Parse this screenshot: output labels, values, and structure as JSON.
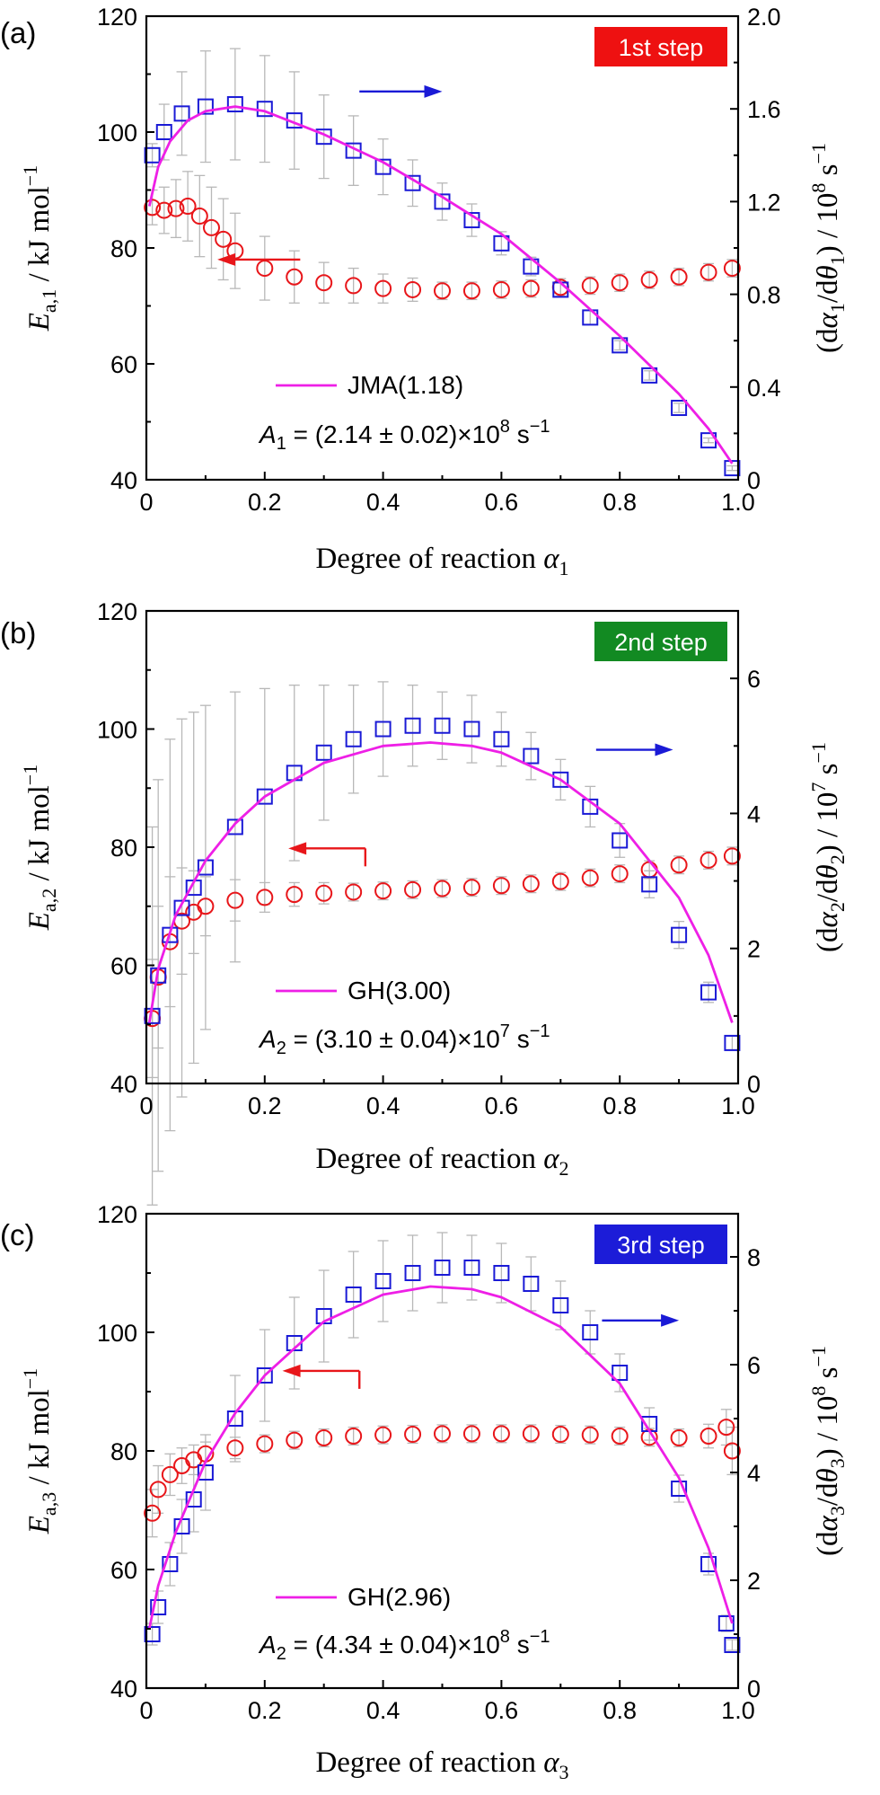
{
  "figure": {
    "colors": {
      "ea_marker": "#e8161a",
      "rate_marker": "#1a1ad6",
      "model_line": "#ee1fe6",
      "error_bar": "#b8b8b8",
      "axis": "#000000"
    }
  },
  "chart_data": [
    {
      "type": "scatter",
      "panel_label": "(a)",
      "badge": {
        "text": "1st step",
        "color": "#ee1111"
      },
      "xlabel": {
        "text": "Degree of reaction ",
        "sym": "α",
        "sub": "1"
      },
      "ylabel_left": {
        "sym": "E",
        "sub": "a,1",
        "rest": " / kJ mol",
        "sup": "−1"
      },
      "ylabel_right": {
        "pre": "(d",
        "sym1": "α",
        "sub1": "1",
        "mid": "/d",
        "sym2": "θ",
        "sub2": "1",
        "post": ") / 10",
        "pow": "8",
        "unit": " s",
        "unitsup": "−1"
      },
      "xlim": [
        0,
        1.0
      ],
      "ylim_left": [
        40,
        120
      ],
      "ylim_right": [
        0,
        2.0
      ],
      "xticks": [
        0,
        0.2,
        0.4,
        0.6,
        0.8,
        1.0
      ],
      "xtick_labels": [
        "0",
        "0.2",
        "0.4",
        "0.6",
        "0.8",
        "1.0"
      ],
      "yticks_left": [
        40,
        60,
        80,
        100,
        120
      ],
      "yticks_left_labels": [
        "40",
        "60",
        "80",
        "100",
        "120"
      ],
      "yticks_right": [
        0,
        0.4,
        0.8,
        1.2,
        1.6,
        2.0
      ],
      "yticks_right_labels": [
        "0",
        "0.4",
        "0.8",
        "1.2",
        "1.6",
        "2.0"
      ],
      "legend": {
        "label": "JMA(1.18)"
      },
      "annotation": {
        "sym": "A",
        "sub": "1",
        "text": " = (2.14 ± 0.02)×10",
        "pow": "8",
        "unit": " s",
        "unitsup": "−1"
      },
      "arrows": [
        {
          "dir": "left",
          "x0": 0.26,
          "x1": 0.12,
          "y": 78,
          "axis": "left"
        },
        {
          "dir": "right",
          "x0": 0.36,
          "x1": 0.5,
          "y": 107,
          "axis": "left"
        }
      ],
      "series": [
        {
          "axis": "left",
          "marker": "circle",
          "x": [
            0.01,
            0.03,
            0.05,
            0.07,
            0.09,
            0.11,
            0.13,
            0.15,
            0.2,
            0.25,
            0.3,
            0.35,
            0.4,
            0.45,
            0.5,
            0.55,
            0.6,
            0.65,
            0.7,
            0.75,
            0.8,
            0.85,
            0.9,
            0.95,
            0.99
          ],
          "y": [
            87,
            86.5,
            86.8,
            87.2,
            85.5,
            83.5,
            81.5,
            79.5,
            76.5,
            75,
            74,
            73.5,
            73,
            72.8,
            72.6,
            72.6,
            72.8,
            73,
            73.2,
            73.5,
            74,
            74.5,
            75,
            75.8,
            76.5
          ],
          "err": [
            3,
            4,
            5,
            6,
            7,
            7,
            7,
            6.5,
            5.5,
            4.5,
            3.5,
            3,
            2.5,
            2,
            1.5,
            1.5,
            1.5,
            1.5,
            1.5,
            1.5,
            1.5,
            1.5,
            1.5,
            1.5,
            1.5
          ]
        },
        {
          "axis": "right",
          "marker": "square",
          "x": [
            0.01,
            0.03,
            0.06,
            0.1,
            0.15,
            0.2,
            0.25,
            0.3,
            0.35,
            0.4,
            0.45,
            0.5,
            0.55,
            0.6,
            0.65,
            0.7,
            0.75,
            0.8,
            0.85,
            0.9,
            0.95,
            0.99
          ],
          "y": [
            1.4,
            1.5,
            1.58,
            1.61,
            1.62,
            1.6,
            1.55,
            1.48,
            1.42,
            1.35,
            1.28,
            1.2,
            1.12,
            1.02,
            0.92,
            0.82,
            0.7,
            0.58,
            0.45,
            0.31,
            0.17,
            0.05
          ],
          "err": [
            0.05,
            0.12,
            0.18,
            0.24,
            0.24,
            0.23,
            0.21,
            0.18,
            0.15,
            0.12,
            0.1,
            0.08,
            0.07,
            0.05,
            0.04,
            0.03,
            0.03,
            0.02,
            0.02,
            0.02,
            0.01,
            0.01
          ]
        }
      ],
      "model": {
        "axis": "right",
        "x": [
          0.005,
          0.02,
          0.04,
          0.07,
          0.1,
          0.15,
          0.2,
          0.3,
          0.4,
          0.5,
          0.6,
          0.7,
          0.8,
          0.9,
          0.95,
          0.99
        ],
        "y": [
          1.18,
          1.35,
          1.46,
          1.55,
          1.59,
          1.61,
          1.59,
          1.49,
          1.37,
          1.22,
          1.06,
          0.85,
          0.62,
          0.37,
          0.22,
          0.07
        ]
      }
    },
    {
      "type": "scatter",
      "panel_label": "(b)",
      "badge": {
        "text": "2nd step",
        "color": "#128a22"
      },
      "xlabel": {
        "text": "Degree of reaction ",
        "sym": "α",
        "sub": "2"
      },
      "ylabel_left": {
        "sym": "E",
        "sub": "a,2",
        "rest": " / kJ mol",
        "sup": "−1"
      },
      "ylabel_right": {
        "pre": "(d",
        "sym1": "α",
        "sub1": "2",
        "mid": "/d",
        "sym2": "θ",
        "sub2": "2",
        "post": ") / 10",
        "pow": "7",
        "unit": " s",
        "unitsup": "−1"
      },
      "xlim": [
        0,
        1.0
      ],
      "ylim_left": [
        40,
        120
      ],
      "ylim_right": [
        0,
        7
      ],
      "xticks": [
        0,
        0.2,
        0.4,
        0.6,
        0.8,
        1.0
      ],
      "xtick_labels": [
        "0",
        "0.2",
        "0.4",
        "0.6",
        "0.8",
        "1.0"
      ],
      "yticks_left": [
        40,
        60,
        80,
        100,
        120
      ],
      "yticks_left_labels": [
        "40",
        "60",
        "80",
        "100",
        "120"
      ],
      "yticks_right": [
        0,
        2,
        4,
        6
      ],
      "yticks_right_labels": [
        "0",
        "2",
        "4",
        "6"
      ],
      "legend": {
        "label": "GH(3.00)"
      },
      "annotation": {
        "sym": "A",
        "sub": "2",
        "text": " = (3.10 ± 0.04)×10",
        "pow": "7",
        "unit": " s",
        "unitsup": "−1"
      },
      "arrows": [
        {
          "dir": "left",
          "x0": 0.37,
          "x1": 0.24,
          "y": 79.8,
          "axis": "left",
          "bend": true
        },
        {
          "dir": "right",
          "x0": 0.76,
          "x1": 0.89,
          "y": 96.5,
          "axis": "left"
        }
      ],
      "series": [
        {
          "axis": "left",
          "marker": "circle",
          "x": [
            0.01,
            0.02,
            0.04,
            0.06,
            0.08,
            0.1,
            0.15,
            0.2,
            0.25,
            0.3,
            0.35,
            0.4,
            0.45,
            0.5,
            0.55,
            0.6,
            0.65,
            0.7,
            0.75,
            0.8,
            0.85,
            0.9,
            0.95,
            0.99
          ],
          "y": [
            51,
            58,
            64,
            67.5,
            69,
            70,
            71,
            71.5,
            72,
            72.2,
            72.4,
            72.6,
            72.8,
            73,
            73.2,
            73.5,
            73.8,
            74.2,
            74.8,
            75.5,
            76.2,
            77,
            77.8,
            78.5
          ],
          "err": [
            10,
            12,
            11,
            9,
            7,
            5,
            3.5,
            2.5,
            2,
            1.8,
            1.5,
            1.5,
            1.5,
            1.5,
            1.5,
            1.5,
            1.5,
            1.5,
            1.5,
            1.5,
            1.5,
            1.5,
            1.5,
            1.5
          ]
        },
        {
          "axis": "right",
          "marker": "square",
          "x": [
            0.01,
            0.02,
            0.04,
            0.06,
            0.08,
            0.1,
            0.15,
            0.2,
            0.25,
            0.3,
            0.35,
            0.4,
            0.45,
            0.5,
            0.55,
            0.6,
            0.65,
            0.7,
            0.75,
            0.8,
            0.85,
            0.9,
            0.95,
            0.99
          ],
          "y": [
            1.0,
            1.6,
            2.2,
            2.6,
            2.9,
            3.2,
            3.8,
            4.25,
            4.6,
            4.9,
            5.1,
            5.25,
            5.3,
            5.3,
            5.25,
            5.1,
            4.85,
            4.5,
            4.1,
            3.6,
            2.95,
            2.2,
            1.35,
            0.6
          ],
          "err": [
            2.8,
            2.9,
            2.9,
            2.8,
            2.6,
            2.4,
            2.0,
            1.6,
            1.3,
            1.0,
            0.8,
            0.7,
            0.6,
            0.5,
            0.5,
            0.4,
            0.35,
            0.3,
            0.3,
            0.25,
            0.2,
            0.2,
            0.15,
            0.1
          ]
        }
      ],
      "model": {
        "axis": "right",
        "x": [
          0.005,
          0.02,
          0.05,
          0.1,
          0.15,
          0.2,
          0.3,
          0.4,
          0.48,
          0.55,
          0.6,
          0.7,
          0.8,
          0.9,
          0.95,
          0.99
        ],
        "y": [
          0.9,
          1.7,
          2.5,
          3.3,
          3.85,
          4.25,
          4.75,
          5.0,
          5.05,
          5.0,
          4.9,
          4.5,
          3.85,
          2.75,
          1.9,
          0.9
        ]
      }
    },
    {
      "type": "scatter",
      "panel_label": "(c)",
      "badge": {
        "text": "3rd step",
        "color": "#1c1cd8"
      },
      "xlabel": {
        "text": "Degree of reaction ",
        "sym": "α",
        "sub": "3"
      },
      "ylabel_left": {
        "sym": "E",
        "sub": "a,3",
        "rest": " / kJ mol",
        "sup": "−1"
      },
      "ylabel_right": {
        "pre": "(d",
        "sym1": "α",
        "sub1": "3",
        "mid": "/d",
        "sym2": "θ",
        "sub2": "3",
        "post": ") / 10",
        "pow": "8",
        "unit": " s",
        "unitsup": "−1"
      },
      "xlim": [
        0,
        1.0
      ],
      "ylim_left": [
        40,
        120
      ],
      "ylim_right": [
        0,
        8.8
      ],
      "xticks": [
        0,
        0.2,
        0.4,
        0.6,
        0.8,
        1.0
      ],
      "xtick_labels": [
        "0",
        "0.2",
        "0.4",
        "0.6",
        "0.8",
        "1.0"
      ],
      "yticks_left": [
        40,
        60,
        80,
        100,
        120
      ],
      "yticks_left_labels": [
        "40",
        "60",
        "80",
        "100",
        "120"
      ],
      "yticks_right": [
        0,
        2,
        4,
        6,
        8
      ],
      "yticks_right_labels": [
        "0",
        "2",
        "4",
        "6",
        "8"
      ],
      "legend": {
        "label": "GH(2.96)"
      },
      "annotation": {
        "sym": "A",
        "sub": "2",
        "text": " = (4.34 ± 0.04)×10",
        "pow": "8",
        "unit": " s",
        "unitsup": "−1"
      },
      "arrows": [
        {
          "dir": "left",
          "x0": 0.36,
          "x1": 0.23,
          "y": 93.5,
          "axis": "left",
          "bend": true
        },
        {
          "dir": "right",
          "x0": 0.77,
          "x1": 0.9,
          "y": 102,
          "axis": "left"
        }
      ],
      "series": [
        {
          "axis": "left",
          "marker": "circle",
          "x": [
            0.01,
            0.02,
            0.04,
            0.06,
            0.08,
            0.1,
            0.15,
            0.2,
            0.25,
            0.3,
            0.35,
            0.4,
            0.45,
            0.5,
            0.55,
            0.6,
            0.65,
            0.7,
            0.75,
            0.8,
            0.85,
            0.9,
            0.95,
            0.98,
            0.99
          ],
          "y": [
            69.5,
            73.5,
            76,
            77.5,
            78.5,
            79.5,
            80.5,
            81.2,
            81.8,
            82.2,
            82.5,
            82.7,
            82.8,
            82.9,
            82.9,
            82.9,
            82.9,
            82.8,
            82.7,
            82.5,
            82.3,
            82.2,
            82.5,
            84,
            80
          ],
          "err": [
            4,
            4,
            3.5,
            3,
            2.5,
            2,
            1.8,
            1.5,
            1.5,
            1.5,
            1.5,
            1.5,
            1.5,
            1.5,
            1.5,
            1.5,
            1.5,
            1.5,
            1.5,
            1.5,
            1.5,
            1.5,
            2,
            3,
            4
          ]
        },
        {
          "axis": "right",
          "marker": "square",
          "x": [
            0.01,
            0.02,
            0.04,
            0.06,
            0.08,
            0.1,
            0.15,
            0.2,
            0.25,
            0.3,
            0.35,
            0.4,
            0.45,
            0.5,
            0.55,
            0.6,
            0.65,
            0.7,
            0.75,
            0.8,
            0.85,
            0.9,
            0.95,
            0.98,
            0.99
          ],
          "y": [
            1.0,
            1.5,
            2.3,
            3.0,
            3.5,
            4.0,
            5.0,
            5.8,
            6.4,
            6.9,
            7.3,
            7.55,
            7.7,
            7.8,
            7.8,
            7.7,
            7.5,
            7.1,
            6.6,
            5.85,
            4.9,
            3.7,
            2.3,
            1.2,
            0.8
          ],
          "err": [
            0.2,
            0.3,
            0.4,
            0.5,
            0.6,
            0.7,
            0.8,
            0.85,
            0.85,
            0.85,
            0.8,
            0.75,
            0.7,
            0.65,
            0.6,
            0.55,
            0.5,
            0.45,
            0.4,
            0.35,
            0.3,
            0.25,
            0.2,
            0.15,
            0.1
          ]
        }
      ],
      "model": {
        "axis": "right",
        "x": [
          0.005,
          0.02,
          0.05,
          0.1,
          0.15,
          0.2,
          0.3,
          0.4,
          0.48,
          0.55,
          0.6,
          0.7,
          0.8,
          0.9,
          0.95,
          0.99
        ],
        "y": [
          1.1,
          1.9,
          2.9,
          4.2,
          5.1,
          5.8,
          6.8,
          7.3,
          7.45,
          7.4,
          7.25,
          6.7,
          5.65,
          3.9,
          2.6,
          1.2
        ]
      }
    }
  ]
}
